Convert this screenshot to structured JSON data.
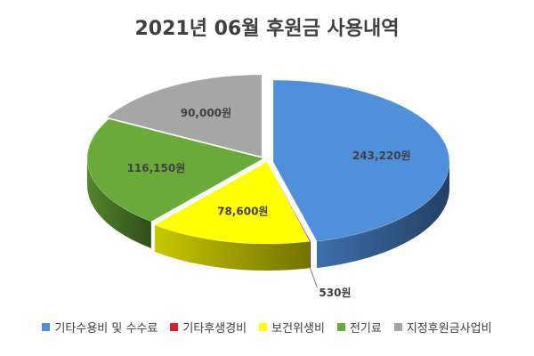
{
  "chart_data": {
    "type": "pie",
    "title": "2021년 06월 후원금 사용내역",
    "style": "3d-exploded",
    "categories": [
      "기타수용비 및 수수료",
      "기타후생경비",
      "보건위생비",
      "전기료",
      "지정후원금사업비"
    ],
    "values": [
      243220,
      530,
      78600,
      116150,
      90000
    ],
    "data_labels": [
      "243,220원",
      "530원",
      "78,600원",
      "116,150원",
      "90,000원"
    ],
    "colors": [
      "#4f8fdc",
      "#e02020",
      "#ffff00",
      "#6aaa3a",
      "#a6a6a6"
    ],
    "legend_position": "bottom"
  }
}
